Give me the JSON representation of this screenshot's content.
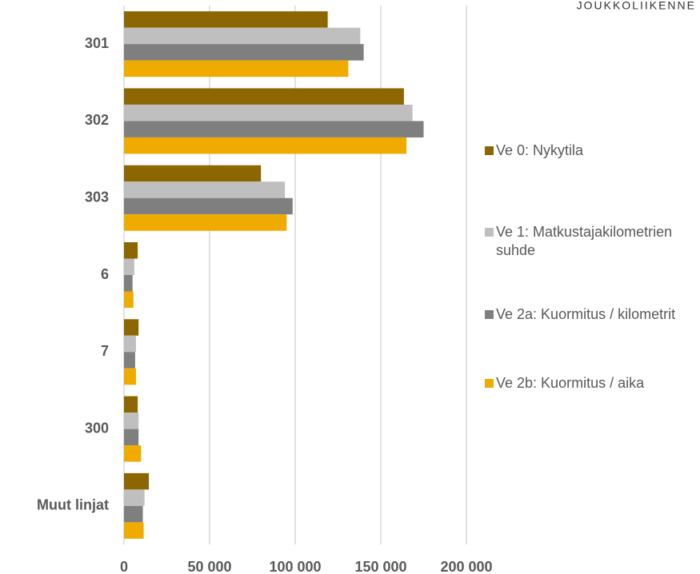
{
  "brand": "JOUKKOLIIKENNE",
  "chart_data": {
    "type": "barh",
    "categories": [
      "301",
      "302",
      "303",
      "6",
      "7",
      "300",
      "Muut linjat"
    ],
    "series": [
      {
        "name": "Ve 0: Nykytila",
        "color": "#8c6600",
        "values": [
          119000,
          163500,
          80000,
          8000,
          8500,
          8000,
          14500
        ]
      },
      {
        "name": "Ve 1: Matkustajakilometrien suhde",
        "color": "#bfbfbf",
        "values": [
          138000,
          168500,
          94000,
          6000,
          7000,
          8500,
          12000
        ]
      },
      {
        "name": "Ve 2a: Kuormitus / kilometrit",
        "color": "#7f7f7f",
        "values": [
          140000,
          175000,
          98500,
          5000,
          6500,
          8500,
          11000
        ]
      },
      {
        "name": "Ve 2b: Kuormitus / aika",
        "color": "#f0ab00",
        "values": [
          131000,
          165000,
          95000,
          5500,
          7000,
          10000,
          11500
        ]
      }
    ],
    "xlim": [
      0,
      200000
    ],
    "xticks": [
      0,
      {
        "value": 50000,
        "label": "50 000"
      },
      {
        "value": 100000,
        "label": "100 000"
      },
      {
        "value": 150000,
        "label": "150 000"
      },
      {
        "value": 200000,
        "label": "200 000"
      }
    ],
    "grid": true,
    "legend": "right"
  }
}
